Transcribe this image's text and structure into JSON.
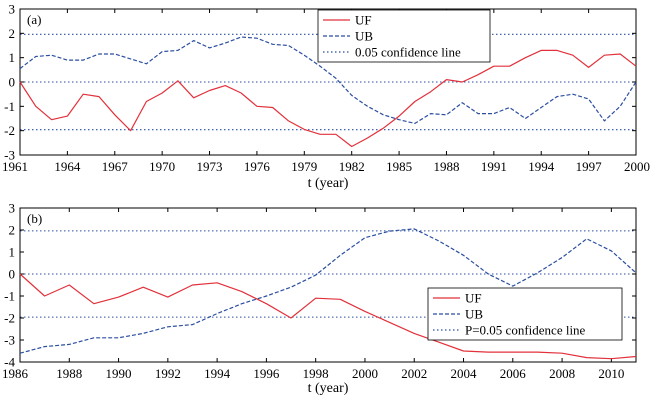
{
  "chart_data": [
    {
      "type": "line",
      "panel_label": "(a)",
      "xlabel": "t (year)",
      "ylabel": "",
      "xlim": [
        1961,
        2000
      ],
      "ylim": [
        -3,
        3
      ],
      "xticks": [
        1961,
        1964,
        1967,
        1970,
        1973,
        1976,
        1979,
        1982,
        1985,
        1988,
        1991,
        1994,
        1997,
        2000
      ],
      "yticks": [
        -3,
        -2,
        -1,
        0,
        1,
        2,
        3
      ],
      "x": [
        1961,
        1962,
        1963,
        1964,
        1965,
        1966,
        1967,
        1968,
        1969,
        1970,
        1971,
        1972,
        1973,
        1974,
        1975,
        1976,
        1977,
        1978,
        1979,
        1980,
        1981,
        1982,
        1983,
        1984,
        1985,
        1986,
        1987,
        1988,
        1989,
        1990,
        1991,
        1992,
        1993,
        1994,
        1995,
        1996,
        1997,
        1998,
        1999,
        2000
      ],
      "series": [
        {
          "name": "UF",
          "color": "#e2313b",
          "style": "solid",
          "values": [
            0,
            -1.0,
            -1.55,
            -1.4,
            -0.5,
            -0.6,
            -1.35,
            -2.0,
            -0.8,
            -0.45,
            0.05,
            -0.65,
            -0.35,
            -0.15,
            -0.45,
            -1.0,
            -1.05,
            -1.6,
            -1.95,
            -2.15,
            -2.15,
            -2.65,
            -2.3,
            -1.9,
            -1.4,
            -0.8,
            -0.4,
            0.1,
            0.0,
            0.3,
            0.65,
            0.65,
            1.0,
            1.3,
            1.3,
            1.1,
            0.6,
            1.1,
            1.15,
            0.65
          ]
        },
        {
          "name": "UB",
          "color": "#2b4ea0",
          "style": "dashed",
          "values": [
            0.55,
            1.05,
            1.1,
            0.9,
            0.9,
            1.15,
            1.15,
            0.95,
            0.75,
            1.25,
            1.3,
            1.7,
            1.4,
            1.6,
            1.85,
            1.8,
            1.55,
            1.5,
            1.1,
            0.65,
            0.15,
            -0.55,
            -1.0,
            -1.35,
            -1.55,
            -1.7,
            -1.3,
            -1.35,
            -0.85,
            -1.3,
            -1.3,
            -1.05,
            -1.5,
            -1.05,
            -0.6,
            -0.5,
            -0.7,
            -1.6,
            -1.0,
            0.0
          ]
        }
      ],
      "confidence_lines": [
        1.96,
        0,
        -1.96
      ],
      "legend": {
        "placement": "top-center",
        "entries": [
          "UF",
          "UB",
          "0.05 confidence line"
        ]
      }
    },
    {
      "type": "line",
      "panel_label": "(b)",
      "xlabel": "t (year)",
      "ylabel": "",
      "xlim": [
        1986,
        2011
      ],
      "ylim": [
        -4,
        3
      ],
      "xticks": [
        1986,
        1988,
        1990,
        1992,
        1994,
        1996,
        1998,
        2000,
        2002,
        2004,
        2006,
        2008,
        2010
      ],
      "yticks": [
        -4,
        -3,
        -2,
        -1,
        0,
        1,
        2,
        3
      ],
      "x": [
        1986,
        1987,
        1988,
        1989,
        1990,
        1991,
        1992,
        1993,
        1994,
        1995,
        1996,
        1997,
        1998,
        1999,
        2000,
        2001,
        2002,
        2003,
        2004,
        2005,
        2006,
        2007,
        2008,
        2009,
        2010,
        2011
      ],
      "series": [
        {
          "name": "UF",
          "color": "#e2313b",
          "style": "solid",
          "values": [
            0,
            -1.0,
            -0.5,
            -1.35,
            -1.05,
            -0.6,
            -1.05,
            -0.5,
            -0.4,
            -0.8,
            -1.35,
            -2.0,
            -1.1,
            -1.15,
            -1.7,
            -2.2,
            -2.7,
            -3.1,
            -3.5,
            -3.55,
            -3.55,
            -3.55,
            -3.6,
            -3.8,
            -3.85,
            -3.75
          ]
        },
        {
          "name": "UB",
          "color": "#2b4ea0",
          "style": "dashed",
          "values": [
            -3.6,
            -3.3,
            -3.2,
            -2.9,
            -2.9,
            -2.7,
            -2.4,
            -2.3,
            -1.8,
            -1.35,
            -1.0,
            -0.6,
            -0.05,
            0.85,
            1.65,
            1.95,
            2.05,
            1.5,
            0.85,
            0.0,
            -0.55,
            0.05,
            0.75,
            1.6,
            1.05,
            0.05
          ]
        }
      ],
      "confidence_lines": [
        1.96,
        0,
        -1.96
      ],
      "legend": {
        "placement": "bottom-right",
        "entries": [
          "UF",
          "UB",
          "P=0.05 confidence line"
        ]
      }
    }
  ]
}
